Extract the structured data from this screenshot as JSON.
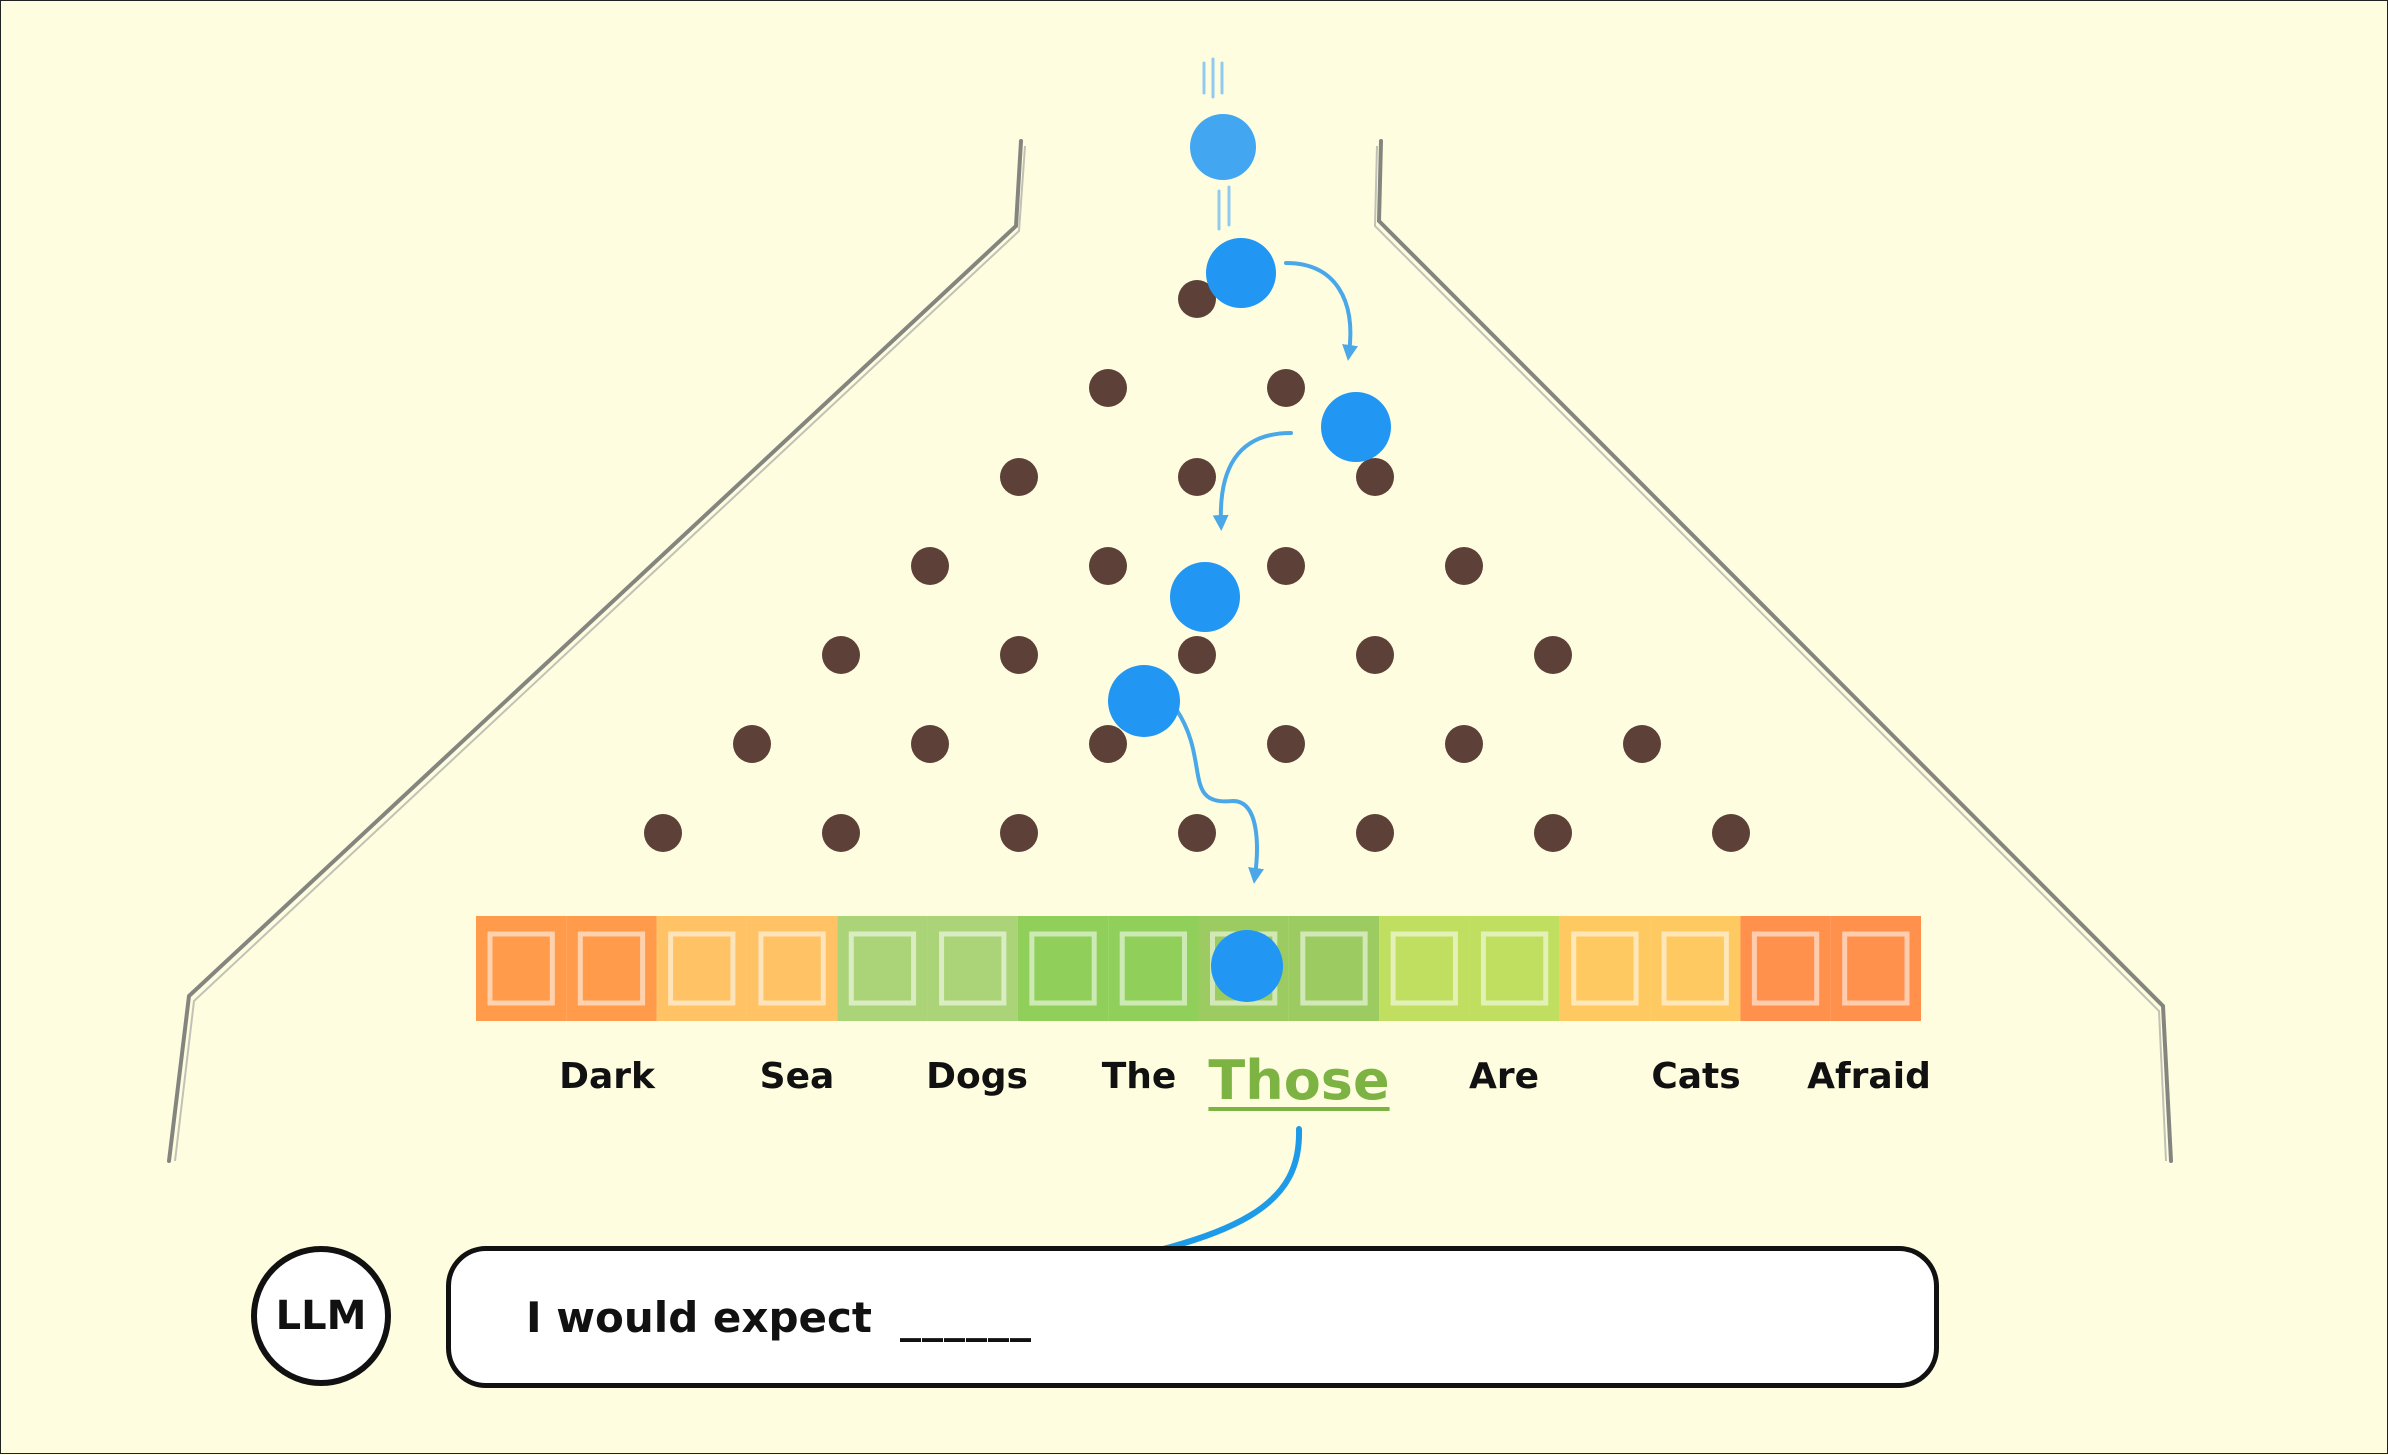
{
  "words": [
    "Dark",
    "Sea",
    "Dogs",
    "The",
    "Those",
    "Are",
    "Cats",
    "Afraid"
  ],
  "selected_word": "Those",
  "llm_label": "LLM",
  "prompt": {
    "text": "I would expect",
    "blank": "______"
  },
  "colors": {
    "background": "#fefde0",
    "peg": "#5d4037",
    "ball": "#2196f3",
    "arrow": "#1e9be8",
    "selected_word": "#7cb342",
    "probability_scale": [
      "#ff8a30",
      "#ffb74d",
      "#9ccc65",
      "#7cc842",
      "#8bc34a",
      "#b5d94a",
      "#ffbf4a",
      "#ff7e33"
    ]
  },
  "icons": [
    "falling-ball-icon",
    "peg-icon",
    "arrow-icon"
  ]
}
